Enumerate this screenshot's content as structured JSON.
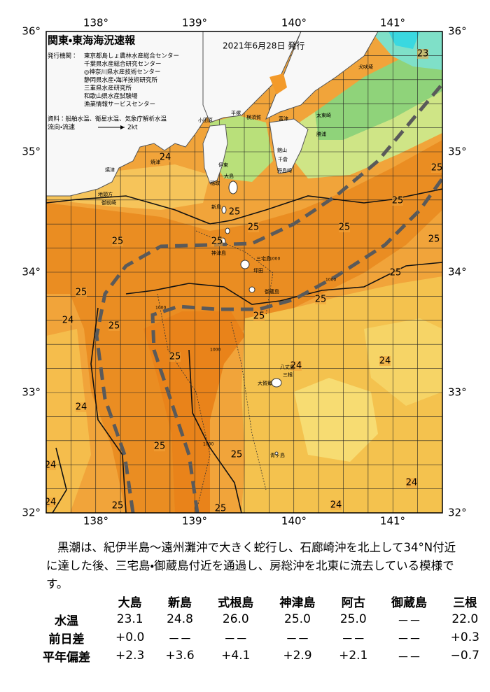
{
  "map": {
    "title": "関東・東海海況速報",
    "issued": "2021年6月28日 発行",
    "issuer_label": "発行機関：",
    "issuers": [
      "東京都島しょ農林水産総合センター",
      "千葉県水産総合研究センター",
      "◎神奈川県水産技術センター",
      "静岡県水産・海洋技術研究所",
      "三重県水産研究所",
      "和歌山県水産試験場",
      "漁業情報サービスセンター"
    ],
    "sources": "資料：船舶水温、衛星水温、気象庁解析水温",
    "current_legend": "流向・流速",
    "current_speed": "2kt",
    "lon_labels": [
      "138°",
      "139°",
      "140°",
      "141°"
    ],
    "lat_labels": [
      "36°",
      "35°",
      "34°",
      "33°",
      "32°"
    ],
    "isotherm_labels": [
      "23",
      "24",
      "25",
      "25",
      "25",
      "25",
      "25",
      "25",
      "25",
      "25",
      "25",
      "25",
      "25",
      "24",
      "25",
      "25",
      "25",
      "24",
      "24",
      "24",
      "25",
      "25",
      "24",
      "24",
      "24",
      "25",
      "25",
      "24"
    ],
    "depth_labels": [
      "1000",
      "1000",
      "1000",
      "1000",
      "1000"
    ],
    "place_names": [
      "小田原",
      "平塚",
      "横須賀",
      "富津",
      "太東崎",
      "勝浦",
      "館山",
      "千倉",
      "野島崎",
      "犬吠埼",
      "大島",
      "新島",
      "神津島",
      "三宅島",
      "坪田",
      "御蔵島",
      "八丈島",
      "三根",
      "大賀郷",
      "青ヶ島",
      "焼津",
      "伊東",
      "稲取",
      "焼津",
      "地頭方",
      "御前崎"
    ]
  },
  "summary": "黒潮は、紀伊半島～遠州灘沖で大きく蛇行し、石廊崎沖を北上して34°N付近に達した後、三宅島・御蔵島付近を通過し、房総沖を北東に流去している模様です。",
  "table": {
    "columns": [
      "大島",
      "新島",
      "式根島",
      "神津島",
      "阿古",
      "御蔵島",
      "三根"
    ],
    "rows": [
      {
        "label": "水温",
        "values": [
          "23.1",
          "24.8",
          "26.0",
          "25.0",
          "25.0",
          "－－",
          "22.0"
        ]
      },
      {
        "label": "前日差",
        "values": [
          "+0.0",
          "－－",
          "－－",
          "－－",
          "－－",
          "－－",
          "+0.3"
        ]
      },
      {
        "label": "平年偏差",
        "values": [
          "+2.3",
          "+3.6",
          "+4.1",
          "+2.9",
          "+2.1",
          "－－",
          "−0.7"
        ]
      }
    ]
  }
}
